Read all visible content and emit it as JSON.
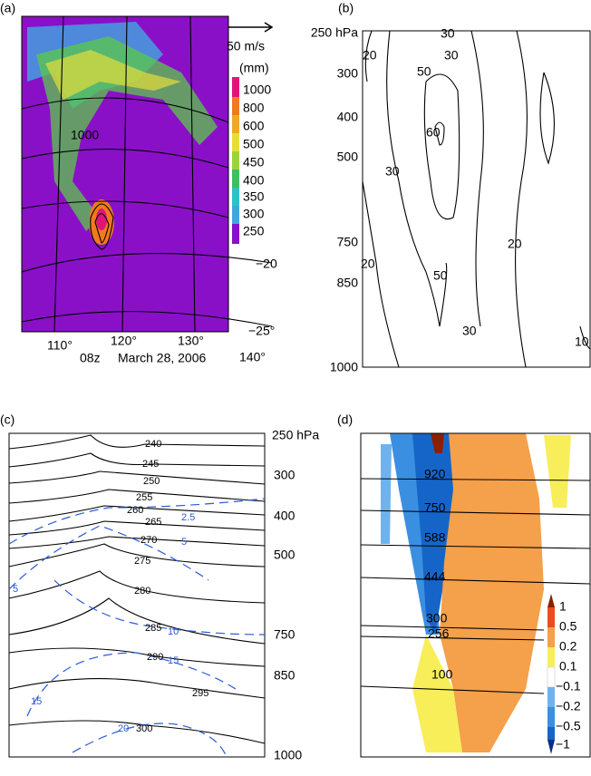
{
  "panels": {
    "a": {
      "label": "(a)",
      "scale": "50 m/s",
      "unit": "(mm)",
      "colorbar": [
        "1000",
        "800",
        "600",
        "500",
        "450",
        "400",
        "350",
        "300",
        "250"
      ],
      "contour_label": "1000",
      "lon": [
        "110°",
        "120°",
        "130°",
        "140°"
      ],
      "lat": [
        "−20",
        "−25°"
      ],
      "time": "08z",
      "date": "March 28, 2006"
    },
    "b": {
      "label": "(b)",
      "levels": [
        "250 hPa",
        "300",
        "400",
        "500",
        "750",
        "850",
        "1000"
      ],
      "contours": [
        "30",
        "30",
        "50",
        "60",
        "30",
        "20",
        "20",
        "20",
        "50",
        "30",
        "10"
      ]
    },
    "c": {
      "label": "(c)",
      "levels": [
        "250 hPa",
        "300",
        "400",
        "500",
        "750",
        "850",
        "1000"
      ],
      "theta": [
        "240",
        "245",
        "250",
        "255",
        "260",
        "265",
        "270",
        "275",
        "280",
        "285",
        "290",
        "295",
        "300"
      ],
      "blue": [
        "2.5",
        "5",
        "5",
        "10",
        "15",
        "15",
        "20"
      ]
    },
    "d": {
      "label": "(d)",
      "contours": [
        "920",
        "750",
        "588",
        "444",
        "300",
        "256",
        "100"
      ],
      "colorbar": [
        "1",
        "0.5",
        "0.2",
        "0.1",
        "−0.1",
        "−0.2",
        "−0.5",
        "−1"
      ]
    }
  }
}
